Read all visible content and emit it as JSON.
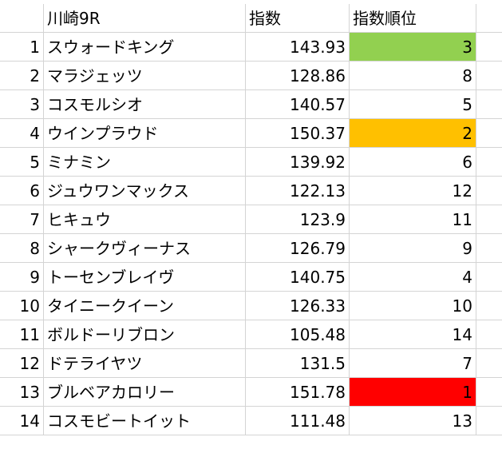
{
  "header": {
    "num": "",
    "title": "川崎9R",
    "index_label": "指数",
    "rank_label": "指数順位"
  },
  "rows": [
    {
      "num": "1",
      "name": "スウォードキング",
      "index": "143.93",
      "rank": "3",
      "highlight": "#92d050"
    },
    {
      "num": "2",
      "name": "マラジェッツ",
      "index": "128.86",
      "rank": "8",
      "highlight": ""
    },
    {
      "num": "3",
      "name": "コスモルシオ",
      "index": "140.57",
      "rank": "5",
      "highlight": ""
    },
    {
      "num": "4",
      "name": "ウインプラウド",
      "index": "150.37",
      "rank": "2",
      "highlight": "#ffc000"
    },
    {
      "num": "5",
      "name": "ミナミン",
      "index": "139.92",
      "rank": "6",
      "highlight": ""
    },
    {
      "num": "6",
      "name": "ジュウワンマックス",
      "index": "122.13",
      "rank": "12",
      "highlight": ""
    },
    {
      "num": "7",
      "name": "ヒキュウ",
      "index": "123.9",
      "rank": "11",
      "highlight": ""
    },
    {
      "num": "8",
      "name": "シャークヴィーナス",
      "index": "126.79",
      "rank": "9",
      "highlight": ""
    },
    {
      "num": "9",
      "name": "トーセンブレイヴ",
      "index": "140.75",
      "rank": "4",
      "highlight": ""
    },
    {
      "num": "10",
      "name": "タイニークイーン",
      "index": "126.33",
      "rank": "10",
      "highlight": ""
    },
    {
      "num": "11",
      "name": "ボルドーリブロン",
      "index": "105.48",
      "rank": "14",
      "highlight": ""
    },
    {
      "num": "12",
      "name": "ドテライヤツ",
      "index": "131.5",
      "rank": "7",
      "highlight": ""
    },
    {
      "num": "13",
      "name": "ブルベアカロリー",
      "index": "151.78",
      "rank": "1",
      "highlight": "#ff0000"
    },
    {
      "num": "14",
      "name": "コスモビートイット",
      "index": "111.48",
      "rank": "13",
      "highlight": ""
    }
  ]
}
